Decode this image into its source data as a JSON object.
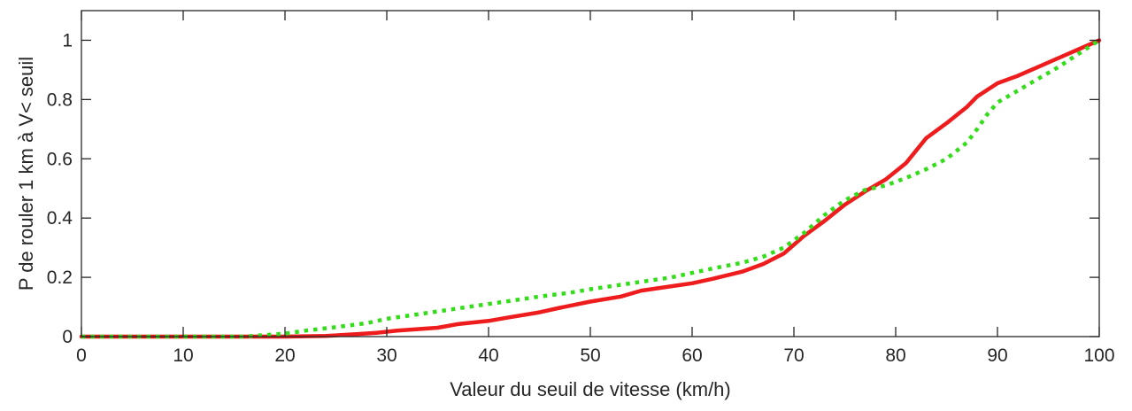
{
  "chart_data": {
    "type": "line",
    "title": "",
    "xlabel": "Valeur du seuil de vitesse (km/h)",
    "ylabel": "P de rouler 1 km à V< seuil",
    "xlim": [
      0,
      100
    ],
    "ylim": [
      0,
      1.1
    ],
    "xticks": [
      0,
      10,
      20,
      30,
      40,
      50,
      60,
      70,
      80,
      90,
      100
    ],
    "yticks": [
      0,
      0.2,
      0.4,
      0.6,
      0.8,
      1
    ],
    "xtick_labels": [
      "0",
      "10",
      "20",
      "30",
      "40",
      "50",
      "60",
      "70",
      "80",
      "90",
      "100"
    ],
    "ytick_labels": [
      "0",
      "0.2",
      "0.4",
      "0.6",
      "0.8",
      "1"
    ],
    "grid": false,
    "legend": "none",
    "series": [
      {
        "style": "solid",
        "color": "#ee1c1c",
        "x": [
          0,
          10,
          17,
          20,
          24,
          27,
          29,
          31,
          33,
          35,
          37,
          40,
          42,
          45,
          47,
          50,
          53,
          55,
          58,
          60,
          62,
          65,
          67,
          69,
          71,
          73,
          75,
          77,
          79,
          81,
          83,
          85,
          87,
          88,
          90,
          92,
          94,
          96,
          98,
          100
        ],
        "y": [
          0,
          0,
          0,
          0,
          0.002,
          0.008,
          0.013,
          0.02,
          0.025,
          0.03,
          0.042,
          0.053,
          0.065,
          0.082,
          0.097,
          0.118,
          0.135,
          0.155,
          0.17,
          0.18,
          0.195,
          0.22,
          0.245,
          0.28,
          0.34,
          0.39,
          0.445,
          0.49,
          0.53,
          0.585,
          0.67,
          0.72,
          0.775,
          0.81,
          0.855,
          0.88,
          0.91,
          0.94,
          0.97,
          1.0
        ]
      },
      {
        "style": "dotted",
        "color": "#33dd1a",
        "x": [
          0,
          10,
          16,
          18,
          20,
          22,
          25,
          28,
          30,
          32,
          35,
          38,
          40,
          42,
          45,
          48,
          50,
          53,
          55,
          58,
          60,
          62,
          65,
          67,
          69,
          71,
          73,
          75,
          77,
          79,
          81,
          83,
          85,
          87,
          88,
          89,
          90,
          92,
          94,
          96,
          98,
          100
        ],
        "y": [
          0,
          0,
          0,
          0.005,
          0.01,
          0.02,
          0.032,
          0.045,
          0.06,
          0.07,
          0.085,
          0.1,
          0.11,
          0.12,
          0.135,
          0.148,
          0.16,
          0.175,
          0.185,
          0.2,
          0.215,
          0.23,
          0.25,
          0.27,
          0.3,
          0.35,
          0.41,
          0.46,
          0.495,
          0.51,
          0.535,
          0.565,
          0.6,
          0.655,
          0.7,
          0.75,
          0.79,
          0.83,
          0.87,
          0.91,
          0.955,
          1.0
        ]
      }
    ]
  }
}
